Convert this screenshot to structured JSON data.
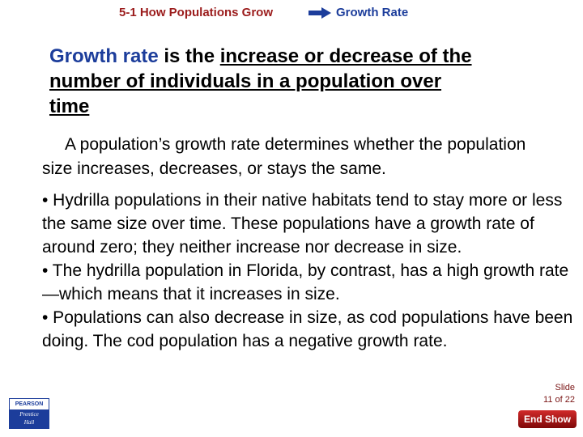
{
  "header": {
    "section": "5-1 How Populations Grow",
    "arrow_icon": "right-arrow-icon",
    "topic": "Growth Rate"
  },
  "headline": {
    "term": "Growth rate",
    "is_the": " is the ",
    "definition_line1": "increase or decrease of the",
    "definition_line2": "number of individuals in a population over",
    "definition_line3": "time"
  },
  "intro": "A population’s growth rate determines whether the population size increases, decreases, or stays the same.",
  "bullets": [
    "•  Hydrilla populations in their native habitats tend to stay more or less the same size over time. These populations have a growth rate of around zero; they neither increase nor decrease in size.",
    "•  The hydrilla population in Florida, by contrast, has a high growth rate—which means that it increases in size.",
    "•  Populations can also decrease in size, as cod populations have been doing. The cod population has a negative growth rate."
  ],
  "footer": {
    "logo_top": "PEARSON",
    "logo_bottom_1": "Prentice",
    "logo_bottom_2": "Hall",
    "slide_label": "Slide",
    "slide_number": "11 of 22",
    "end_show_label": "End Show"
  },
  "colors": {
    "section_red": "#9b1c1c",
    "topic_blue": "#1c3d9b"
  }
}
